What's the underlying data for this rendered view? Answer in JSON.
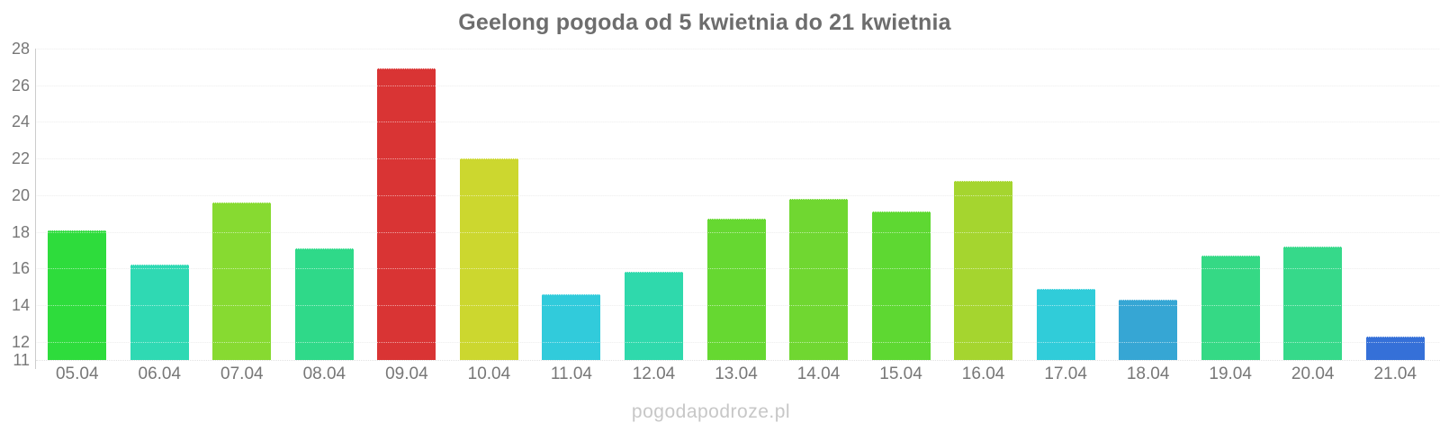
{
  "page": {
    "watermark": "pogodapodroze.pl"
  },
  "chart_data": {
    "type": "bar",
    "title": "Geelong pogoda od 5 kwietnia do 21 kwietnia",
    "categories": [
      "05.04",
      "06.04",
      "07.04",
      "08.04",
      "09.04",
      "10.04",
      "11.04",
      "12.04",
      "13.04",
      "14.04",
      "15.04",
      "16.04",
      "17.04",
      "18.04",
      "19.04",
      "20.04",
      "21.04"
    ],
    "values": [
      18.1,
      16.2,
      19.6,
      17.1,
      26.9,
      22.0,
      14.6,
      15.8,
      18.7,
      19.8,
      19.1,
      20.8,
      14.9,
      14.3,
      16.7,
      17.2,
      12.3
    ],
    "bar_colors": [
      "#2edc3c",
      "#2fd9b3",
      "#87da31",
      "#2fd989",
      "#d93434",
      "#ccd72f",
      "#31cbdb",
      "#2fd9ac",
      "#66d831",
      "#70d731",
      "#5ed832",
      "#a5d52f",
      "#30ccd9",
      "#36a6d4",
      "#35d985",
      "#36d98a",
      "#3570d8"
    ],
    "xlabel": "",
    "ylabel": "",
    "ylim": [
      11,
      28
    ],
    "yticks": [
      28,
      26,
      24,
      22,
      20,
      18,
      16,
      14,
      12,
      11
    ],
    "grid": true,
    "legend": false,
    "colors": {
      "background": "#ffffff",
      "title": "#6d6d6d",
      "tick_labels": "#777777",
      "gridline": "#f2f2f2",
      "axis_line": "#cccccc",
      "watermark": "#c7c7c7"
    }
  }
}
